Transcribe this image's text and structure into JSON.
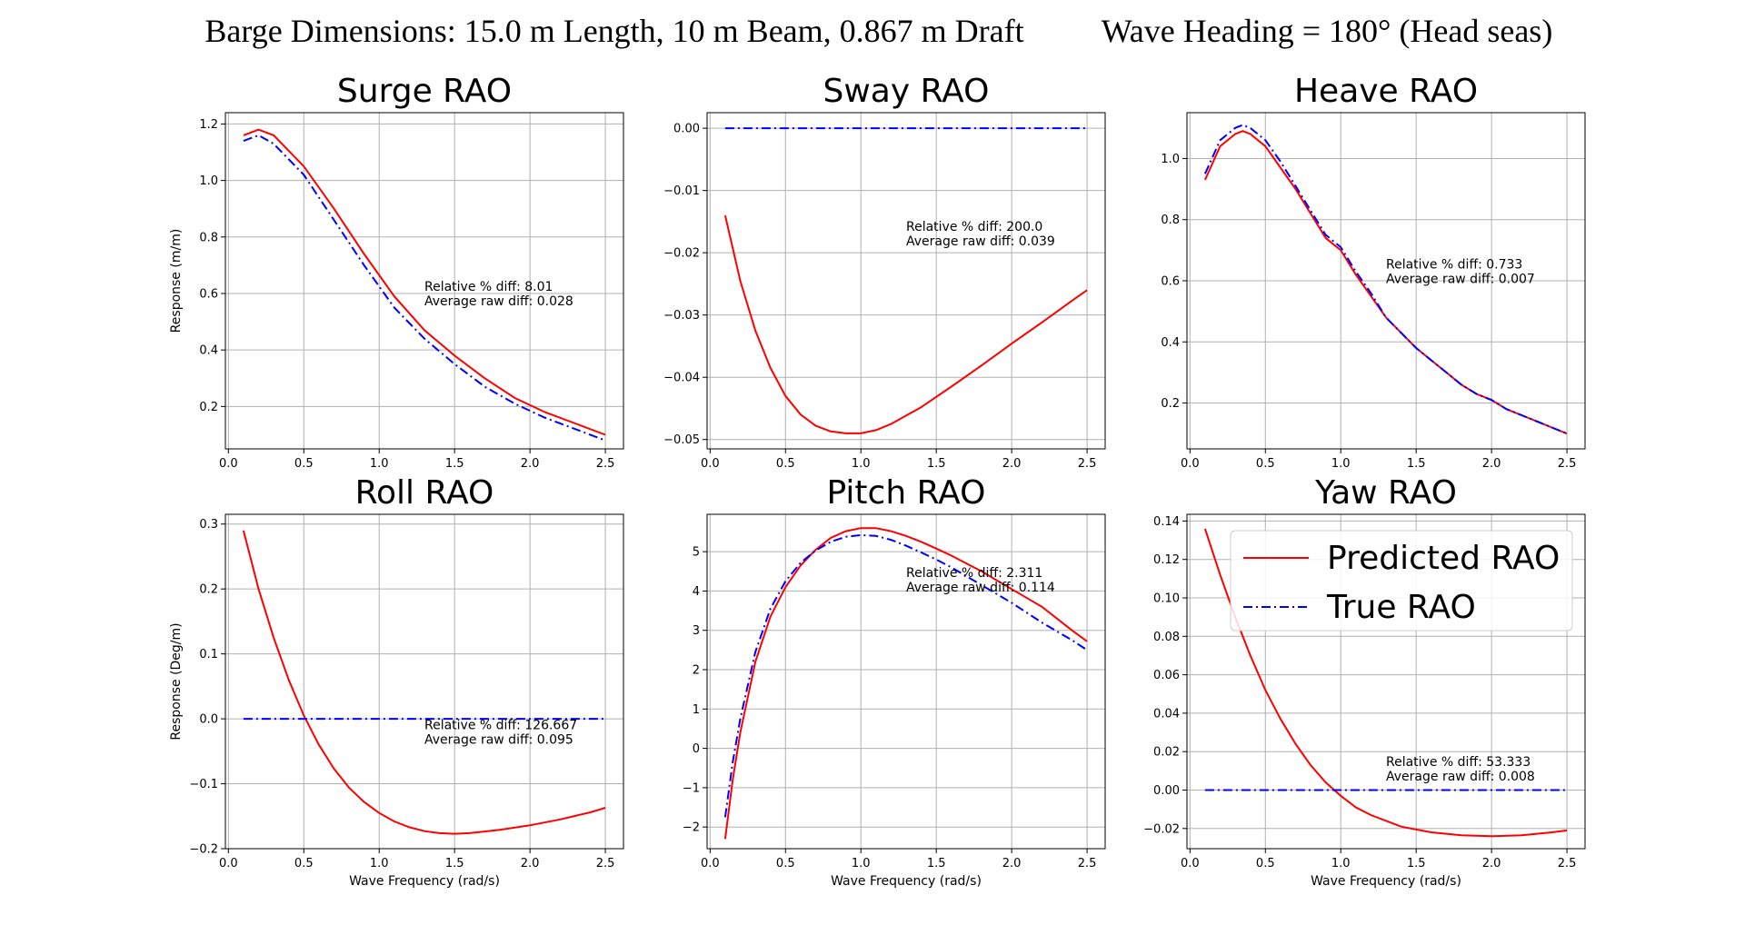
{
  "suptitle": {
    "left": "Barge Dimensions: 15.0 m Length, 10 m Beam, 0.867 m Draft",
    "right": "Wave Heading = 180° (Head seas)"
  },
  "colors": {
    "predicted": "#ff0000",
    "true": "#0000ff"
  },
  "chart_data": [
    {
      "type": "line",
      "title": "Surge RAO",
      "xlabel": "",
      "ylabel": "Response (m/m)",
      "xlim": [
        -0.02,
        2.62
      ],
      "ylim": [
        0.05,
        1.24
      ],
      "xticks": [
        0.0,
        0.5,
        1.0,
        1.5,
        2.0,
        2.5
      ],
      "xtick_labels": [
        "0.0",
        "0.5",
        "1.0",
        "1.5",
        "2.0",
        "2.5"
      ],
      "yticks": [
        0.2,
        0.4,
        0.6,
        0.8,
        1.0,
        1.2
      ],
      "ytick_labels": [
        "0.2",
        "0.4",
        "0.6",
        "0.8",
        "1.0",
        "1.2"
      ],
      "grid": true,
      "annotation": [
        "Relative % diff: 8.01",
        "Average raw diff: 0.028"
      ],
      "annotation_at": [
        1.3,
        0.61
      ],
      "series": [
        {
          "name": "Predicted RAO",
          "style": "solid",
          "x": [
            0.1,
            0.2,
            0.3,
            0.5,
            0.7,
            0.9,
            1.1,
            1.3,
            1.5,
            1.7,
            1.9,
            2.1,
            2.3,
            2.5
          ],
          "y": [
            1.16,
            1.18,
            1.16,
            1.05,
            0.9,
            0.74,
            0.59,
            0.47,
            0.38,
            0.3,
            0.23,
            0.18,
            0.14,
            0.1
          ]
        },
        {
          "name": "True RAO",
          "style": "dashdot",
          "x": [
            0.1,
            0.2,
            0.3,
            0.5,
            0.7,
            0.9,
            1.1,
            1.3,
            1.5,
            1.7,
            1.9,
            2.1,
            2.3,
            2.5
          ],
          "y": [
            1.14,
            1.16,
            1.13,
            1.02,
            0.86,
            0.7,
            0.55,
            0.44,
            0.35,
            0.27,
            0.21,
            0.16,
            0.12,
            0.08
          ]
        }
      ]
    },
    {
      "type": "line",
      "title": "Sway RAO",
      "xlabel": "",
      "ylabel": "",
      "xlim": [
        -0.02,
        2.62
      ],
      "ylim": [
        -0.0515,
        0.0025
      ],
      "xticks": [
        0.0,
        0.5,
        1.0,
        1.5,
        2.0,
        2.5
      ],
      "xtick_labels": [
        "0.0",
        "0.5",
        "1.0",
        "1.5",
        "2.0",
        "2.5"
      ],
      "yticks": [
        0.0,
        -0.01,
        -0.02,
        -0.03,
        -0.04,
        -0.05
      ],
      "ytick_labels": [
        "0.00",
        "−0.01",
        "−0.02",
        "−0.03",
        "−0.04",
        "−0.05"
      ],
      "grid": true,
      "annotation": [
        "Relative % diff: 200.0",
        "Average raw diff: 0.039"
      ],
      "annotation_at": [
        1.3,
        -0.0165
      ],
      "series": [
        {
          "name": "Predicted RAO",
          "style": "solid",
          "x": [
            0.1,
            0.2,
            0.3,
            0.4,
            0.5,
            0.6,
            0.7,
            0.8,
            0.9,
            1.0,
            1.1,
            1.2,
            1.4,
            1.6,
            1.8,
            2.0,
            2.2,
            2.4,
            2.5
          ],
          "y": [
            -0.014,
            -0.0245,
            -0.0325,
            -0.0385,
            -0.043,
            -0.046,
            -0.0478,
            -0.0487,
            -0.049,
            -0.049,
            -0.0485,
            -0.0475,
            -0.0448,
            -0.0415,
            -0.0381,
            -0.0346,
            -0.0312,
            -0.0277,
            -0.026
          ]
        },
        {
          "name": "True RAO",
          "style": "dashdot",
          "x": [
            0.1,
            2.5
          ],
          "y": [
            0.0,
            0.0
          ]
        }
      ]
    },
    {
      "type": "line",
      "title": "Heave RAO",
      "xlabel": "",
      "ylabel": "",
      "xlim": [
        -0.02,
        2.62
      ],
      "ylim": [
        0.05,
        1.15
      ],
      "xticks": [
        0.0,
        0.5,
        1.0,
        1.5,
        2.0,
        2.5
      ],
      "xtick_labels": [
        "0.0",
        "0.5",
        "1.0",
        "1.5",
        "2.0",
        "2.5"
      ],
      "yticks": [
        0.2,
        0.4,
        0.6,
        0.8,
        1.0
      ],
      "ytick_labels": [
        "0.2",
        "0.4",
        "0.6",
        "0.8",
        "1.0"
      ],
      "grid": true,
      "annotation": [
        "Relative % diff: 0.733",
        "Average raw diff: 0.007"
      ],
      "annotation_at": [
        1.3,
        0.64
      ],
      "series": [
        {
          "name": "Predicted RAO",
          "style": "solid",
          "x": [
            0.1,
            0.2,
            0.3,
            0.35,
            0.4,
            0.5,
            0.6,
            0.7,
            0.8,
            0.9,
            1.0,
            1.1,
            1.2,
            1.3,
            1.4,
            1.5,
            1.6,
            1.7,
            1.8,
            1.9,
            2.0,
            2.1,
            2.2,
            2.3,
            2.4,
            2.5
          ],
          "y": [
            0.93,
            1.04,
            1.08,
            1.09,
            1.08,
            1.04,
            0.97,
            0.9,
            0.82,
            0.74,
            0.7,
            0.62,
            0.55,
            0.48,
            0.43,
            0.38,
            0.34,
            0.3,
            0.26,
            0.23,
            0.21,
            0.18,
            0.16,
            0.14,
            0.12,
            0.1
          ]
        },
        {
          "name": "True RAO",
          "style": "dashdot",
          "x": [
            0.1,
            0.2,
            0.3,
            0.35,
            0.4,
            0.5,
            0.6,
            0.7,
            0.8,
            0.9,
            1.0,
            1.1,
            1.2,
            1.3,
            1.4,
            1.5,
            1.6,
            1.7,
            1.8,
            1.9,
            2.0,
            2.1,
            2.2,
            2.3,
            2.4,
            2.5
          ],
          "y": [
            0.95,
            1.06,
            1.1,
            1.11,
            1.1,
            1.06,
            0.99,
            0.91,
            0.83,
            0.75,
            0.71,
            0.63,
            0.56,
            0.48,
            0.43,
            0.38,
            0.34,
            0.3,
            0.26,
            0.23,
            0.21,
            0.18,
            0.16,
            0.14,
            0.12,
            0.1
          ]
        }
      ]
    },
    {
      "type": "line",
      "title": "Roll RAO",
      "xlabel": "Wave Frequency (rad/s)",
      "ylabel": "Response (Deg/m)",
      "xlim": [
        -0.02,
        2.62
      ],
      "ylim": [
        -0.2,
        0.315
      ],
      "xticks": [
        0.0,
        0.5,
        1.0,
        1.5,
        2.0,
        2.5
      ],
      "xtick_labels": [
        "0.0",
        "0.5",
        "1.0",
        "1.5",
        "2.0",
        "2.5"
      ],
      "yticks": [
        0.3,
        0.2,
        0.1,
        0.0,
        -0.1,
        -0.2
      ],
      "ytick_labels": [
        "0.3",
        "0.2",
        "0.1",
        "0.0",
        "−0.1",
        "−0.2"
      ],
      "grid": true,
      "annotation": [
        "Relative % diff: 126.667",
        "Average raw diff: 0.095"
      ],
      "annotation_at": [
        1.3,
        -0.016
      ],
      "series": [
        {
          "name": "Predicted RAO",
          "style": "solid",
          "x": [
            0.1,
            0.2,
            0.3,
            0.4,
            0.5,
            0.6,
            0.7,
            0.8,
            0.9,
            1.0,
            1.1,
            1.2,
            1.3,
            1.4,
            1.5,
            1.6,
            1.8,
            2.0,
            2.2,
            2.4,
            2.5
          ],
          "y": [
            0.29,
            0.2,
            0.125,
            0.06,
            0.005,
            -0.04,
            -0.077,
            -0.106,
            -0.128,
            -0.145,
            -0.158,
            -0.167,
            -0.173,
            -0.176,
            -0.177,
            -0.176,
            -0.171,
            -0.164,
            -0.155,
            -0.144,
            -0.137
          ]
        },
        {
          "name": "True RAO",
          "style": "dashdot",
          "x": [
            0.1,
            2.5
          ],
          "y": [
            0.0,
            0.0
          ]
        }
      ]
    },
    {
      "type": "line",
      "title": "Pitch RAO",
      "xlabel": "Wave Frequency (rad/s)",
      "ylabel": "",
      "xlim": [
        -0.02,
        2.62
      ],
      "ylim": [
        -2.55,
        5.95
      ],
      "xticks": [
        0.0,
        0.5,
        1.0,
        1.5,
        2.0,
        2.5
      ],
      "xtick_labels": [
        "0.0",
        "0.5",
        "1.0",
        "1.5",
        "2.0",
        "2.5"
      ],
      "yticks": [
        5,
        4,
        3,
        2,
        1,
        0,
        -1,
        -2
      ],
      "ytick_labels": [
        "5",
        "4",
        "3",
        "2",
        "1",
        "0",
        "−1",
        "−2"
      ],
      "grid": true,
      "annotation": [
        "Relative % diff: 2.311",
        "Average raw diff: 0.114"
      ],
      "annotation_at": [
        1.3,
        4.36
      ],
      "series": [
        {
          "name": "Predicted RAO",
          "style": "solid",
          "x": [
            0.1,
            0.15,
            0.2,
            0.3,
            0.4,
            0.5,
            0.6,
            0.7,
            0.8,
            0.9,
            1.0,
            1.1,
            1.2,
            1.3,
            1.4,
            1.5,
            1.6,
            1.8,
            2.0,
            2.2,
            2.4,
            2.5
          ],
          "y": [
            -2.3,
            -0.8,
            0.4,
            2.2,
            3.35,
            4.1,
            4.65,
            5.05,
            5.35,
            5.52,
            5.6,
            5.6,
            5.52,
            5.4,
            5.25,
            5.08,
            4.9,
            4.5,
            4.05,
            3.6,
            3.0,
            2.72
          ]
        },
        {
          "name": "True RAO",
          "style": "dashdot",
          "x": [
            0.1,
            0.15,
            0.2,
            0.3,
            0.4,
            0.5,
            0.6,
            0.7,
            0.8,
            0.9,
            1.0,
            1.1,
            1.2,
            1.3,
            1.4,
            1.5,
            1.6,
            1.8,
            2.0,
            2.2,
            2.4,
            2.5
          ],
          "y": [
            -1.75,
            -0.35,
            0.75,
            2.45,
            3.55,
            4.25,
            4.72,
            5.03,
            5.25,
            5.38,
            5.42,
            5.4,
            5.3,
            5.15,
            4.98,
            4.8,
            4.6,
            4.15,
            3.7,
            3.2,
            2.75,
            2.5
          ]
        }
      ]
    },
    {
      "type": "line",
      "title": "Yaw RAO",
      "xlabel": "Wave Frequency (rad/s)",
      "ylabel": "",
      "xlim": [
        -0.02,
        2.62
      ],
      "ylim": [
        -0.0305,
        0.1435
      ],
      "xticks": [
        0.0,
        0.5,
        1.0,
        1.5,
        2.0,
        2.5
      ],
      "xtick_labels": [
        "0.0",
        "0.5",
        "1.0",
        "1.5",
        "2.0",
        "2.5"
      ],
      "yticks": [
        0.14,
        0.12,
        0.1,
        0.08,
        0.06,
        0.04,
        0.02,
        0.0,
        -0.02
      ],
      "ytick_labels": [
        "0.14",
        "0.12",
        "0.10",
        "0.08",
        "0.06",
        "0.04",
        "0.02",
        "0.00",
        "−0.02"
      ],
      "grid": true,
      "annotation": [
        "Relative % diff: 53.333",
        "Average raw diff: 0.008"
      ],
      "annotation_at": [
        1.3,
        0.0125
      ],
      "series": [
        {
          "name": "Predicted RAO",
          "style": "solid",
          "x": [
            0.1,
            0.2,
            0.3,
            0.4,
            0.5,
            0.6,
            0.7,
            0.8,
            0.9,
            1.0,
            1.1,
            1.2,
            1.3,
            1.4,
            1.6,
            1.8,
            2.0,
            2.2,
            2.4,
            2.5
          ],
          "y": [
            0.136,
            0.112,
            0.09,
            0.07,
            0.052,
            0.037,
            0.024,
            0.013,
            0.004,
            -0.003,
            -0.009,
            -0.013,
            -0.016,
            -0.019,
            -0.022,
            -0.0235,
            -0.024,
            -0.0235,
            -0.022,
            -0.021
          ]
        },
        {
          "name": "True RAO",
          "style": "dashdot",
          "x": [
            0.1,
            2.5
          ],
          "y": [
            0.0,
            0.0
          ]
        }
      ]
    }
  ],
  "legend": {
    "location": "upper-right of Yaw RAO",
    "items": [
      {
        "label": "Predicted RAO",
        "style": "solid"
      },
      {
        "label": "True RAO",
        "style": "dashdot"
      }
    ]
  }
}
